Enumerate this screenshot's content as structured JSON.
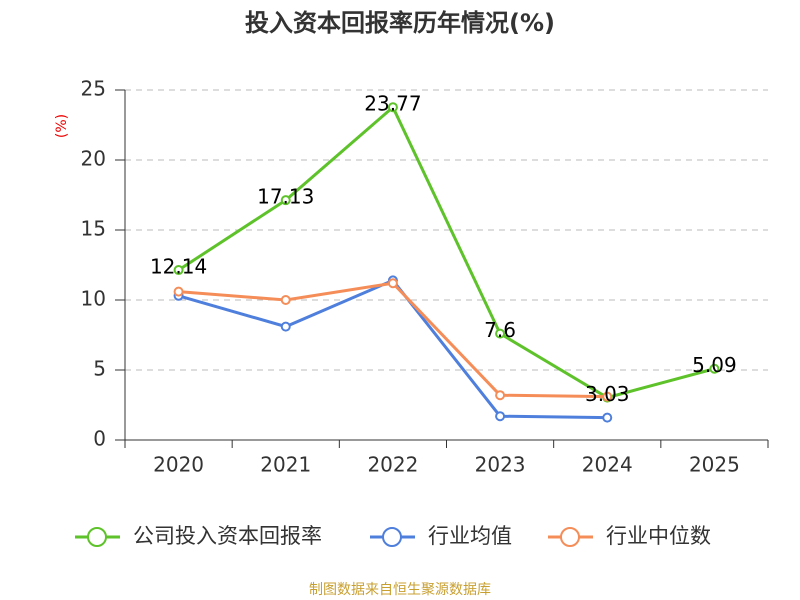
{
  "chart_data": {
    "type": "line",
    "title": "投入资本回报率历年情况(%)",
    "y_label": "(%)",
    "source": "制图数据来自恒生聚源数据库",
    "categories": [
      "2020",
      "2021",
      "2022",
      "2023",
      "2024",
      "2025"
    ],
    "series": [
      {
        "name": "公司投入资本回报率",
        "color": "#5ec22a",
        "values": [
          12.14,
          17.13,
          23.77,
          7.6,
          3.03,
          5.09
        ],
        "show_labels": true
      },
      {
        "name": "行业均值",
        "color": "#4f7fdc",
        "values": [
          10.3,
          8.1,
          11.4,
          1.7,
          1.6,
          null
        ]
      },
      {
        "name": "行业中位数",
        "color": "#f58d58",
        "values": [
          10.6,
          10.0,
          11.2,
          3.2,
          3.1,
          null
        ]
      }
    ],
    "ylim": [
      0,
      25
    ],
    "yticks": [
      0,
      5,
      10,
      15,
      20,
      25
    ],
    "grid": true
  }
}
